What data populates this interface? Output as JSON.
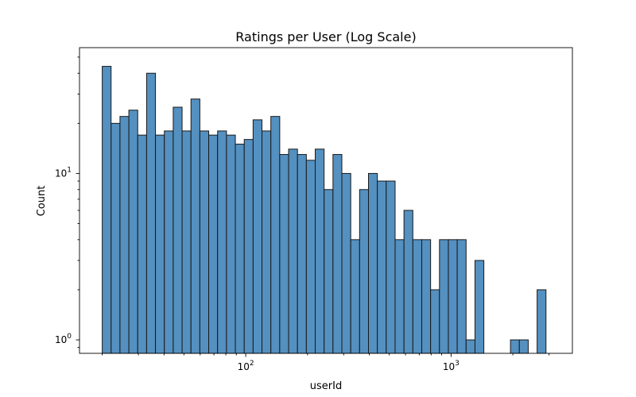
{
  "chart_data": {
    "type": "bar",
    "title": "Ratings per User (Log Scale)",
    "xlabel": "userId",
    "ylabel": "Count",
    "x_scale": "log",
    "y_scale": "log",
    "xlim": [
      15.5,
      3900
    ],
    "ylim": [
      0.83,
      57
    ],
    "x_major_ticks": [
      100,
      1000
    ],
    "y_major_ticks": [
      1,
      10
    ],
    "bin_range": [
      20,
      2900
    ],
    "bins": 50,
    "counts": [
      44,
      20,
      22,
      24,
      17,
      40,
      17,
      18,
      25,
      18,
      28,
      18,
      17,
      18,
      17,
      15,
      16,
      21,
      18,
      22,
      13,
      14,
      13,
      12,
      14,
      8,
      13,
      10,
      4,
      8,
      10,
      9,
      9,
      4,
      6,
      4,
      4,
      2,
      4,
      4,
      4,
      1,
      3,
      0,
      0,
      0,
      1,
      1,
      0,
      2
    ],
    "bar_color": "#5490c0",
    "edge_color": "#1a1a1a",
    "grid": false
  },
  "labels": {
    "title": "Ratings per User (Log Scale)",
    "xlabel": "userId",
    "ylabel": "Count"
  }
}
